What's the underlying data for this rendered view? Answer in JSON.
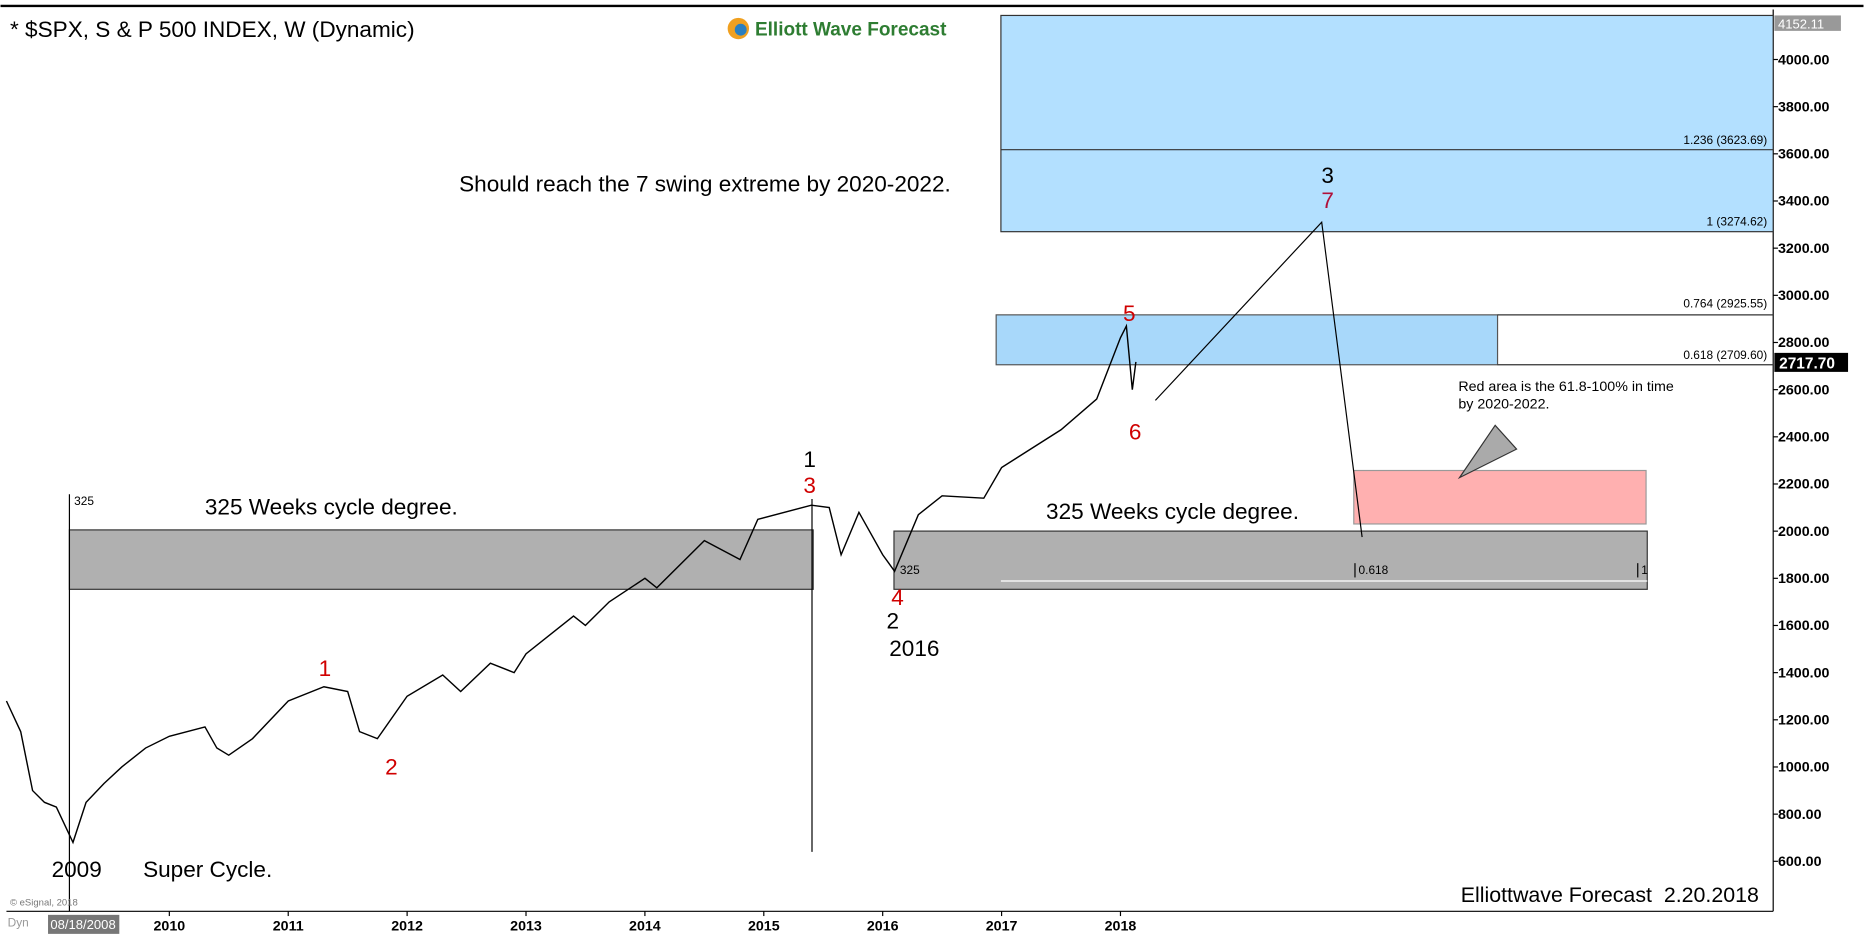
{
  "chart_data": {
    "type": "line",
    "title": "* $SPX, S & P 500 INDEX, W (Dynamic)",
    "logo": "Elliott Wave Forecast",
    "color": "#000000",
    "x": [
      2008.63,
      2008.75,
      2008.85,
      2008.95,
      2009.05,
      2009.19,
      2009.3,
      2009.45,
      2009.6,
      2009.8,
      2010.0,
      2010.3,
      2010.4,
      2010.5,
      2010.7,
      2011.0,
      2011.3,
      2011.5,
      2011.6,
      2011.75,
      2012.0,
      2012.3,
      2012.45,
      2012.7,
      2012.9,
      2013.0,
      2013.4,
      2013.5,
      2013.7,
      2014.0,
      2014.1,
      2014.5,
      2014.8,
      2014.95,
      2015.4,
      2015.55,
      2015.65,
      2015.8,
      2016.0,
      2016.1,
      2016.3,
      2016.5,
      2016.85,
      2017.0,
      2017.5,
      2017.8,
      2018.0,
      2018.05,
      2018.1,
      2018.13
    ],
    "values": [
      1280,
      1150,
      900,
      850,
      830,
      680,
      850,
      930,
      1000,
      1080,
      1130,
      1170,
      1080,
      1050,
      1120,
      1280,
      1340,
      1320,
      1150,
      1120,
      1300,
      1390,
      1320,
      1440,
      1400,
      1480,
      1640,
      1600,
      1700,
      1800,
      1760,
      1960,
      1880,
      2050,
      2110,
      2100,
      1900,
      2080,
      1900,
      1830,
      2070,
      2150,
      2140,
      2270,
      2430,
      2560,
      2820,
      2870,
      2600,
      2717.7
    ],
    "xlim": [
      2008.63,
      2023.49
    ],
    "ylim": [
      388,
      4212
    ],
    "xticks": [
      2010,
      2011,
      2012,
      2013,
      2014,
      2015,
      2016,
      2017,
      2018
    ],
    "yticks": [
      {
        "value": 600,
        "label": "600.00"
      },
      {
        "value": 800,
        "label": "800.00"
      },
      {
        "value": 1000,
        "label": "1000.00"
      },
      {
        "value": 1200,
        "label": "1200.00"
      },
      {
        "value": 1400,
        "label": "1400.00"
      },
      {
        "value": 1600,
        "label": "1600.00"
      },
      {
        "value": 1800,
        "label": "1800.00"
      },
      {
        "value": 2000,
        "label": "2000.00"
      },
      {
        "value": 2200,
        "label": "2200.00"
      },
      {
        "value": 2400,
        "label": "2400.00"
      },
      {
        "value": 2600,
        "label": "2600.00"
      },
      {
        "value": 2800,
        "label": "2800.00"
      },
      {
        "value": 3000,
        "label": "3000.00"
      },
      {
        "value": 3200,
        "label": "3200.00"
      },
      {
        "value": 3400,
        "label": "3400.00"
      },
      {
        "value": 3600,
        "label": "3600.00"
      },
      {
        "value": 3800,
        "label": "3800.00"
      },
      {
        "value": 4000,
        "label": "4000.00"
      }
    ],
    "price_tags": [
      "4152.11",
      "2717.70"
    ],
    "fib_labels": [
      "1.236 (3623.69)",
      "1 (3274.62)",
      "0.764 (2925.55)",
      "0.618 (2709.60)"
    ],
    "start_date": "08/18/2008",
    "dyn_label": "Dyn",
    "annotations": [
      {
        "text": "Should reach the 7 swing extreme by 2020-2022.",
        "color": "#000000"
      },
      {
        "text": "325 Weeks cycle degree.",
        "color": "#000000"
      },
      {
        "text": "325 Weeks cycle degree.",
        "color": "#000000"
      },
      {
        "text": "2009",
        "color": "#000000"
      },
      {
        "text": "Super Cycle.",
        "color": "#000000"
      },
      {
        "text": "2016",
        "color": "#000000"
      },
      {
        "text": "Red area is the 61.8-100% in time",
        "color": "#000000"
      },
      {
        "text": "by 2020-2022.",
        "color": "#000000"
      },
      {
        "text": "1",
        "color": "#000000"
      },
      {
        "text": "3",
        "color": "#d00000"
      },
      {
        "text": "1",
        "color": "#d00000"
      },
      {
        "text": "2",
        "color": "#d00000"
      },
      {
        "text": "4",
        "color": "#d00000"
      },
      {
        "text": "2",
        "color": "#000000"
      },
      {
        "text": "5",
        "color": "#d00000"
      },
      {
        "text": "6",
        "color": "#d00000"
      },
      {
        "text": "3",
        "color": "#000000"
      },
      {
        "text": "7",
        "color": "#b0103a"
      },
      {
        "text": "325",
        "color": "#000000"
      },
      {
        "text": "325",
        "color": "#000000"
      },
      {
        "text": "0.618",
        "color": "#000000"
      },
      {
        "text": "1",
        "color": "#000000"
      },
      {
        "text": "Elliottwave Forecast  2.20.2018",
        "color": "#000000"
      },
      {
        "text": "© eSignal, 2018",
        "color": "#777777"
      }
    ]
  }
}
